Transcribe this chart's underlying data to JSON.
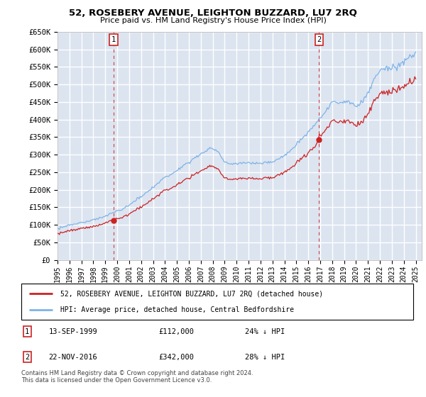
{
  "title": "52, ROSEBERY AVENUE, LEIGHTON BUZZARD, LU7 2RQ",
  "subtitle": "Price paid vs. HM Land Registry's House Price Index (HPI)",
  "ylabel_ticks": [
    "£0",
    "£50K",
    "£100K",
    "£150K",
    "£200K",
    "£250K",
    "£300K",
    "£350K",
    "£400K",
    "£450K",
    "£500K",
    "£550K",
    "£600K",
    "£650K"
  ],
  "ytick_values": [
    0,
    50000,
    100000,
    150000,
    200000,
    250000,
    300000,
    350000,
    400000,
    450000,
    500000,
    550000,
    600000,
    650000
  ],
  "xlim_start": 1995.0,
  "xlim_end": 2025.5,
  "ylim_min": 0,
  "ylim_max": 650000,
  "plot_bg_color": "#dce4f0",
  "grid_color": "#ffffff",
  "hpi_line_color": "#7fb3e8",
  "price_line_color": "#cc2222",
  "sale1_date": 1999.71,
  "sale1_price": 112000,
  "sale2_date": 2016.9,
  "sale2_price": 342000,
  "legend_label1": "52, ROSEBERY AVENUE, LEIGHTON BUZZARD, LU7 2RQ (detached house)",
  "legend_label2": "HPI: Average price, detached house, Central Bedfordshire",
  "table_row1": [
    "1",
    "13-SEP-1999",
    "£112,000",
    "24% ↓ HPI"
  ],
  "table_row2": [
    "2",
    "22-NOV-2016",
    "£342,000",
    "28% ↓ HPI"
  ],
  "footnote": "Contains HM Land Registry data © Crown copyright and database right 2024.\nThis data is licensed under the Open Government Licence v3.0.",
  "xtick_years": [
    1995,
    1996,
    1997,
    1998,
    1999,
    2000,
    2001,
    2002,
    2003,
    2004,
    2005,
    2006,
    2007,
    2008,
    2009,
    2010,
    2011,
    2012,
    2013,
    2014,
    2015,
    2016,
    2017,
    2018,
    2019,
    2020,
    2021,
    2022,
    2023,
    2024,
    2025
  ]
}
